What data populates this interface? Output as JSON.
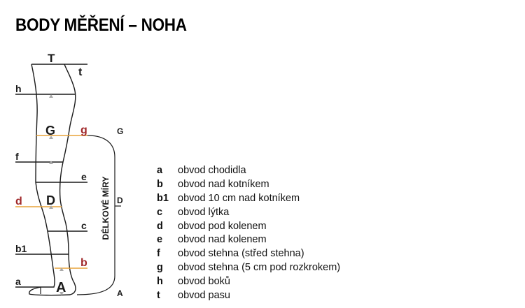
{
  "title": "BODY MĚŘENÍ – NOHA",
  "colors": {
    "accent_line": "#e8a33a",
    "accent_label": "#a0282a",
    "line": "#1a1a1a",
    "marker": "#aaaaaa"
  },
  "diagram": {
    "labels": {
      "T": "T",
      "t": "t",
      "h": "h",
      "G": "G",
      "g": "g",
      "f": "f",
      "e": "e",
      "d": "d",
      "D": "D",
      "c": "c",
      "b1": "b1",
      "b": "b",
      "a": "a",
      "A": "A"
    },
    "bracket": {
      "top": "G",
      "middle": "D",
      "bottom": "A",
      "caption": "DÉLKOVÉ MÍRY"
    }
  },
  "legend": [
    {
      "key": "a",
      "text": "obvod chodidla"
    },
    {
      "key": "b",
      "text": "obvod nad kotníkem"
    },
    {
      "key": "b1",
      "text": "obvod 10 cm nad kotníkem"
    },
    {
      "key": "c",
      "text": "obvod lýtka"
    },
    {
      "key": "d",
      "text": "obvod pod kolenem"
    },
    {
      "key": "e",
      "text": "obvod nad kolenem"
    },
    {
      "key": "f",
      "text": "obvod stehna (střed stehna)"
    },
    {
      "key": "g",
      "text": "obvod stehna (5 cm pod rozkrokem)"
    },
    {
      "key": "h",
      "text": "obvod boků"
    },
    {
      "key": "t",
      "text": "obvod pasu"
    }
  ]
}
